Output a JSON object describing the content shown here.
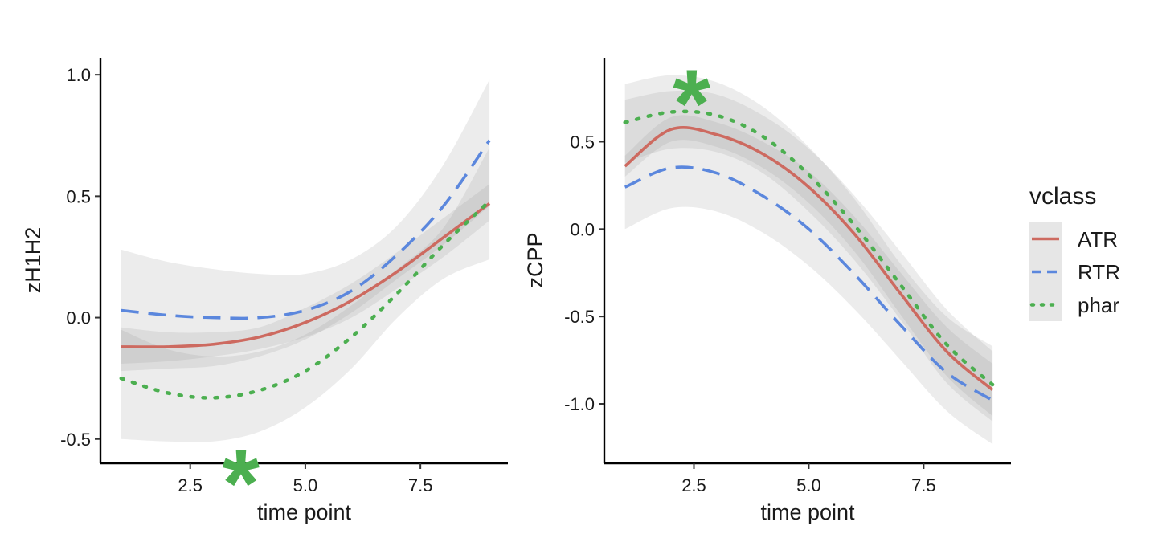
{
  "chart_data": [
    {
      "type": "line",
      "id": "left",
      "xlabel": "time point",
      "ylabel": "zH1H2",
      "xlim": [
        0.55,
        9.4
      ],
      "ylim": [
        -0.6,
        1.07
      ],
      "xticks": [
        2.5,
        5.0,
        7.5
      ],
      "xtick_labels": [
        "2.5",
        "5.0",
        "7.5"
      ],
      "yticks": [
        -0.5,
        0.0,
        0.5,
        1.0
      ],
      "ytick_labels": [
        "-0.5",
        "0.0",
        "0.5",
        "1.0"
      ],
      "x": [
        1,
        2,
        3,
        4,
        5,
        6,
        7,
        8,
        9
      ],
      "series": [
        {
          "name": "ATR",
          "values": [
            -0.12,
            -0.12,
            -0.11,
            -0.08,
            -0.02,
            0.07,
            0.19,
            0.33,
            0.47
          ],
          "lower": [
            -0.19,
            -0.18,
            -0.16,
            -0.13,
            -0.08,
            0.0,
            0.12,
            0.25,
            0.4
          ],
          "upper": [
            -0.04,
            -0.06,
            -0.06,
            -0.04,
            0.04,
            0.14,
            0.27,
            0.41,
            0.55
          ]
        },
        {
          "name": "RTR",
          "values": [
            0.03,
            0.01,
            0.0,
            0.0,
            0.03,
            0.11,
            0.26,
            0.46,
            0.73
          ],
          "lower": [
            -0.22,
            -0.21,
            -0.2,
            -0.16,
            -0.09,
            0.02,
            0.16,
            0.3,
            0.46
          ],
          "upper": [
            0.28,
            0.23,
            0.2,
            0.18,
            0.18,
            0.24,
            0.38,
            0.63,
            0.98
          ]
        },
        {
          "name": "phar",
          "values": [
            -0.25,
            -0.31,
            -0.33,
            -0.3,
            -0.22,
            -0.08,
            0.1,
            0.3,
            0.48
          ],
          "lower": [
            -0.5,
            -0.51,
            -0.51,
            -0.47,
            -0.37,
            -0.21,
            0.0,
            0.16,
            0.24
          ],
          "upper": [
            -0.05,
            -0.13,
            -0.16,
            -0.14,
            -0.07,
            0.05,
            0.2,
            0.37,
            0.7
          ]
        }
      ],
      "annotation": "*",
      "annotation_x": 3.6,
      "annotation_y": -0.58
    },
    {
      "type": "line",
      "id": "right",
      "xlabel": "time point",
      "ylabel": "zCPP",
      "xlim": [
        0.55,
        9.4
      ],
      "ylim": [
        -1.34,
        0.98
      ],
      "xticks": [
        2.5,
        5.0,
        7.5
      ],
      "xtick_labels": [
        "2.5",
        "5.0",
        "7.5"
      ],
      "yticks": [
        -1.0,
        -0.5,
        0.0,
        0.5
      ],
      "ytick_labels": [
        "-1.0",
        "-0.5",
        "0.0",
        "0.5"
      ],
      "x": [
        1,
        2,
        3,
        4,
        5,
        6,
        7,
        8,
        9
      ],
      "series": [
        {
          "name": "ATR",
          "values": [
            0.36,
            0.57,
            0.54,
            0.43,
            0.24,
            -0.03,
            -0.37,
            -0.7,
            -0.92
          ],
          "lower": [
            0.3,
            0.5,
            0.47,
            0.35,
            0.15,
            -0.13,
            -0.49,
            -0.84,
            -1.07
          ],
          "upper": [
            0.42,
            0.64,
            0.61,
            0.5,
            0.33,
            0.07,
            -0.25,
            -0.56,
            -0.77
          ]
        },
        {
          "name": "RTR",
          "values": [
            0.24,
            0.35,
            0.32,
            0.19,
            0.0,
            -0.26,
            -0.55,
            -0.82,
            -0.98
          ],
          "lower": [
            0.0,
            0.12,
            0.1,
            -0.02,
            -0.21,
            -0.46,
            -0.75,
            -1.04,
            -1.23
          ],
          "upper": [
            0.83,
            0.88,
            0.84,
            0.7,
            0.47,
            0.17,
            -0.2,
            -0.5,
            -0.67
          ]
        },
        {
          "name": "phar",
          "values": [
            0.61,
            0.67,
            0.65,
            0.53,
            0.31,
            0.02,
            -0.32,
            -0.66,
            -0.89
          ],
          "lower": [
            0.38,
            0.46,
            0.44,
            0.32,
            0.1,
            -0.18,
            -0.52,
            -0.88,
            -1.1
          ],
          "upper": [
            0.74,
            0.79,
            0.77,
            0.65,
            0.46,
            0.19,
            -0.13,
            -0.46,
            -0.7
          ]
        }
      ],
      "annotation": "*",
      "annotation_x": 2.45,
      "annotation_y": 0.86
    }
  ],
  "legend": {
    "title": "vclass",
    "placement": "right",
    "items": [
      {
        "label": "ATR",
        "color": "#cd6a60",
        "dash": "solid"
      },
      {
        "label": "RTR",
        "color": "#5b87dd",
        "dash": "dashed"
      },
      {
        "label": "phar",
        "color": "#4caf50",
        "dash": "dotted"
      }
    ]
  },
  "colors": {
    "ATR": "#cd6a60",
    "RTR": "#5b87dd",
    "phar": "#4caf50",
    "annotation": "#4caf50"
  }
}
